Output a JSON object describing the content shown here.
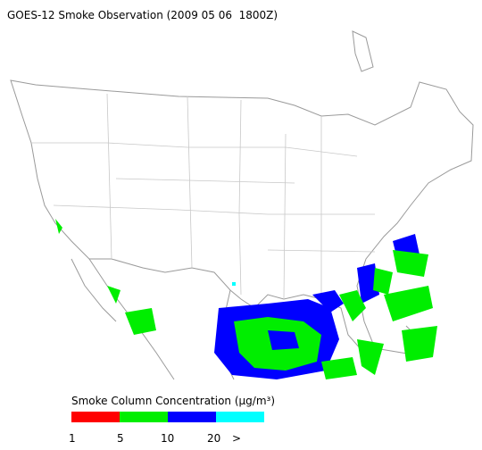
{
  "title": "GOES-12 Smoke Observation (2009 05 06  1800Z)",
  "legend": {
    "title": "Smoke Column Concentration (μg/m³)",
    "colors": [
      "#ff0000",
      "#00ee00",
      "#0000ff",
      "#00ffff"
    ],
    "ticks": [
      "1",
      "5",
      "10",
      "20",
      ">"
    ]
  }
}
